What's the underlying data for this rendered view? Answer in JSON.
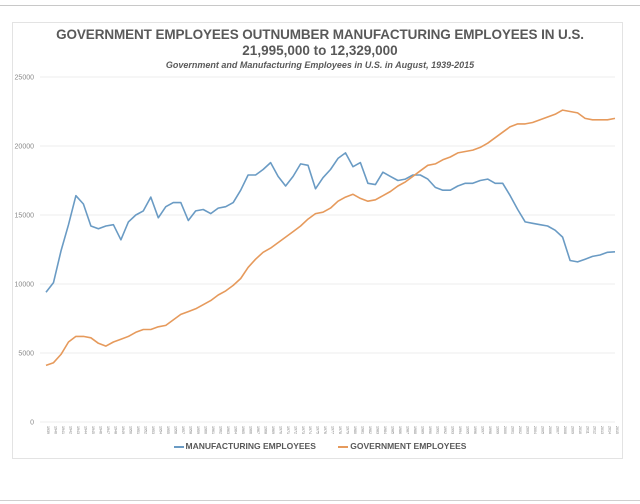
{
  "chart_data": {
    "type": "line",
    "title": "GOVERNMENT EMPLOYEES OUTNUMBER MANUFACTURING EMPLOYEES IN U.S.",
    "subtitle": "21,995,000 to 12,329,000",
    "subtitle2": "Government and Manufacturing Employees in U.S. in August, 1939-2015",
    "xlabel": "",
    "ylabel": "",
    "ylim": [
      0,
      25000
    ],
    "yticks": [
      "0",
      "5000",
      "10000",
      "15000",
      "20000",
      "25000"
    ],
    "grid": true,
    "legend_position": "bottom",
    "x": [
      1939,
      1940,
      1941,
      1942,
      1943,
      1944,
      1945,
      1946,
      1947,
      1948,
      1949,
      1950,
      1951,
      1952,
      1953,
      1954,
      1955,
      1956,
      1957,
      1958,
      1959,
      1960,
      1961,
      1962,
      1963,
      1964,
      1965,
      1966,
      1967,
      1968,
      1969,
      1970,
      1971,
      1972,
      1973,
      1974,
      1975,
      1976,
      1977,
      1978,
      1979,
      1980,
      1981,
      1982,
      1983,
      1984,
      1985,
      1986,
      1987,
      1988,
      1989,
      1990,
      1991,
      1992,
      1993,
      1994,
      1995,
      1996,
      1997,
      1998,
      1999,
      2000,
      2001,
      2002,
      2003,
      2004,
      2005,
      2006,
      2007,
      2008,
      2009,
      2010,
      2011,
      2012,
      2013,
      2014,
      2015
    ],
    "series": [
      {
        "name": "MANUFACTURING EMPLOYEES",
        "color": "#6a9bc4",
        "values": [
          9400,
          10100,
          12400,
          14300,
          16400,
          15800,
          14200,
          14000,
          14200,
          14300,
          13200,
          14500,
          15000,
          15300,
          16300,
          14800,
          15600,
          15900,
          15900,
          14600,
          15300,
          15400,
          15100,
          15500,
          15600,
          15900,
          16800,
          17900,
          17900,
          18300,
          18800,
          17800,
          17100,
          17800,
          18700,
          18600,
          16900,
          17700,
          18300,
          19100,
          19500,
          18500,
          18800,
          17300,
          17200,
          18100,
          17800,
          17500,
          17600,
          17900,
          17900,
          17600,
          17000,
          16800,
          16800,
          17100,
          17300,
          17300,
          17500,
          17600,
          17300,
          17300,
          16400,
          15400,
          14500,
          14400,
          14300,
          14200,
          13900,
          13400,
          11700,
          11600,
          11800,
          12000,
          12100,
          12300,
          12330
        ]
      },
      {
        "name": "GOVERNMENT EMPLOYEES",
        "color": "#e69a5c",
        "values": [
          4100,
          4300,
          4900,
          5800,
          6200,
          6200,
          6100,
          5700,
          5500,
          5800,
          6000,
          6200,
          6500,
          6700,
          6700,
          6900,
          7000,
          7400,
          7800,
          8000,
          8200,
          8500,
          8800,
          9200,
          9500,
          9900,
          10400,
          11200,
          11800,
          12300,
          12600,
          13000,
          13400,
          13800,
          14200,
          14700,
          15100,
          15200,
          15500,
          16000,
          16300,
          16500,
          16200,
          16000,
          16100,
          16400,
          16700,
          17100,
          17400,
          17800,
          18200,
          18600,
          18700,
          19000,
          19200,
          19500,
          19600,
          19700,
          19900,
          20200,
          20600,
          21000,
          21400,
          21600,
          21600,
          21700,
          21900,
          22100,
          22300,
          22600,
          22500,
          22400,
          22000,
          21900,
          21900,
          21900,
          22000
        ]
      }
    ]
  }
}
